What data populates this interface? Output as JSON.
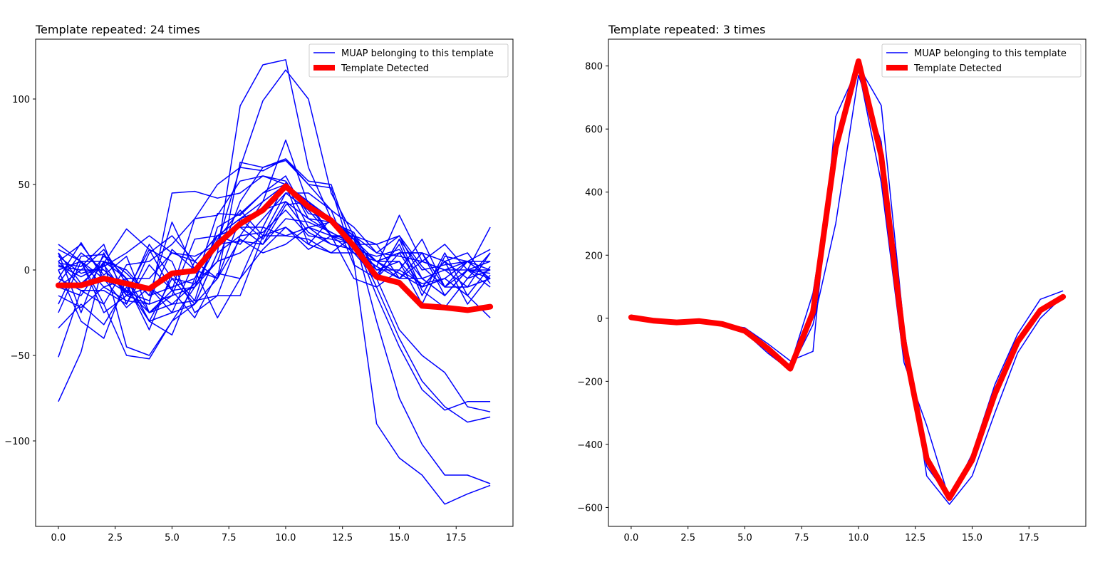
{
  "chart_data": [
    {
      "type": "line",
      "title": "Template repeated: 24 times",
      "xlabel": "",
      "ylabel": "",
      "xlim": [
        -1,
        20
      ],
      "ylim": [
        -150,
        135
      ],
      "grid": false,
      "legend_position": "top-right",
      "x_ticks": [
        0.0,
        2.5,
        5.0,
        7.5,
        10.0,
        12.5,
        15.0,
        17.5
      ],
      "x_tick_labels": [
        "0.0",
        "2.5",
        "5.0",
        "7.5",
        "10.0",
        "12.5",
        "15.0",
        "17.5"
      ],
      "y_ticks": [
        100,
        50,
        0,
        -50,
        -100
      ],
      "y_tick_labels": [
        "100",
        "50",
        "0",
        "−50",
        "−100"
      ],
      "x": [
        0,
        1,
        2,
        3,
        4,
        5,
        6,
        7,
        8,
        9,
        10,
        11,
        12,
        13,
        14,
        15,
        16,
        17,
        18,
        19
      ],
      "muap_color": "#0000ff",
      "template_color": "#ff0000",
      "legend": [
        {
          "label": "MUAP belonging to this template",
          "color": "#0000ff",
          "style": "thin"
        },
        {
          "label": "Template Detected",
          "color": "#ff0000",
          "style": "thick"
        }
      ],
      "muaps": [
        [
          -77,
          -48,
          5,
          -45,
          -50,
          -30,
          -20,
          10,
          96,
          120,
          123,
          60,
          30,
          18,
          -10,
          -40,
          -65,
          -80,
          -89,
          -86
        ],
        [
          -51,
          -12,
          -20,
          -50,
          -52,
          -30,
          -10,
          15,
          60,
          99,
          117,
          100,
          45,
          20,
          -30,
          -75,
          -102,
          -120,
          -120,
          -125
        ],
        [
          0,
          -30,
          -40,
          -5,
          -25,
          -20,
          -8,
          5,
          40,
          60,
          64,
          50,
          48,
          5,
          -90,
          -110,
          -120,
          -137,
          -131,
          -126
        ],
        [
          -34,
          -20,
          -32,
          -10,
          -30,
          -38,
          -5,
          20,
          30,
          40,
          50,
          40,
          20,
          18,
          -15,
          -45,
          -70,
          -82,
          -77,
          -77
        ],
        [
          5,
          -10,
          8,
          -2,
          -15,
          -10,
          -5,
          20,
          15,
          30,
          45,
          35,
          20,
          20,
          -5,
          -35,
          -50,
          -60,
          -80,
          -83
        ],
        [
          15,
          5,
          -5,
          -22,
          -10,
          -20,
          -18,
          -15,
          20,
          40,
          76,
          38,
          20,
          -5,
          -10,
          0,
          -8,
          -5,
          -15,
          -28
        ],
        [
          10,
          -25,
          10,
          -15,
          -20,
          45,
          46,
          42,
          45,
          55,
          52,
          33,
          30,
          18,
          5,
          10,
          -10,
          5,
          -5,
          10
        ],
        [
          3,
          -4,
          3,
          -15,
          15,
          -5,
          -20,
          -5,
          63,
          60,
          65,
          52,
          50,
          12,
          2,
          32,
          5,
          15,
          0,
          -10
        ],
        [
          -10,
          0,
          0,
          -13,
          12,
          5,
          -25,
          -15,
          -15,
          20,
          45,
          45,
          35,
          3,
          -5,
          10,
          10,
          -15,
          0,
          25
        ],
        [
          -5,
          16,
          -5,
          -13,
          -18,
          12,
          0,
          -28,
          -5,
          25,
          51,
          25,
          28,
          18,
          -5,
          18,
          0,
          3,
          5,
          5
        ],
        [
          -20,
          8,
          9,
          -5,
          -30,
          -5,
          -8,
          33,
          32,
          45,
          55,
          30,
          28,
          20,
          0,
          5,
          -20,
          8,
          5,
          -5
        ],
        [
          0,
          5,
          -25,
          -15,
          -10,
          -25,
          5,
          20,
          30,
          35,
          40,
          30,
          22,
          15,
          15,
          20,
          -5,
          -15,
          0,
          -2
        ],
        [
          8,
          -2,
          2,
          10,
          20,
          10,
          8,
          15,
          17,
          15,
          30,
          28,
          22,
          15,
          5,
          10,
          10,
          -10,
          0,
          5
        ],
        [
          -5,
          -12,
          -12,
          -20,
          3,
          -12,
          30,
          50,
          60,
          58,
          65,
          50,
          35,
          25,
          10,
          20,
          2,
          -10,
          -10,
          10
        ],
        [
          12,
          5,
          -10,
          -18,
          -20,
          -15,
          -10,
          18,
          35,
          20,
          25,
          15,
          10,
          20,
          10,
          8,
          5,
          0,
          5,
          -5
        ],
        [
          -8,
          10,
          0,
          -12,
          -25,
          -15,
          18,
          20,
          25,
          15,
          38,
          40,
          28,
          22,
          -3,
          15,
          -15,
          10,
          -15,
          2
        ],
        [
          5,
          15,
          -3,
          8,
          -25,
          -12,
          -10,
          5,
          10,
          20,
          20,
          25,
          15,
          12,
          0,
          0,
          18,
          -10,
          5,
          12
        ],
        [
          -15,
          -22,
          -10,
          -5,
          -30,
          -25,
          -20,
          10,
          20,
          22,
          35,
          20,
          18,
          15,
          5,
          5,
          -10,
          5,
          -20,
          -3
        ],
        [
          2,
          0,
          12,
          -8,
          -35,
          -2,
          -18,
          25,
          33,
          45,
          50,
          40,
          30,
          10,
          -5,
          18,
          -12,
          -22,
          -5,
          0
        ],
        [
          -25,
          5,
          -20,
          3,
          5,
          15,
          30,
          32,
          52,
          55,
          50,
          15,
          30,
          20,
          15,
          -5,
          -5,
          -15,
          0,
          -5
        ],
        [
          10,
          -8,
          4,
          24,
          12,
          -12,
          -28,
          -2,
          -5,
          12,
          25,
          12,
          20,
          15,
          5,
          -2,
          -10,
          -5,
          5,
          0
        ],
        [
          -10,
          -15,
          5,
          -5,
          -5,
          10,
          5,
          -5,
          18,
          10,
          15,
          25,
          20,
          10,
          5,
          -5,
          10,
          5,
          10,
          -8
        ],
        [
          0,
          5,
          5,
          0,
          -15,
          28,
          0,
          -5,
          30,
          18,
          40,
          22,
          15,
          12,
          8,
          12,
          -5,
          0,
          -10,
          -5
        ],
        [
          4,
          2,
          15,
          -20,
          10,
          20,
          5,
          20,
          25,
          25,
          20,
          18,
          10,
          10,
          2,
          -5,
          5,
          0,
          0,
          0
        ]
      ],
      "template": [
        -9,
        -9,
        -5,
        -8,
        -11,
        -2,
        -0.5,
        15,
        27,
        35,
        49,
        37,
        29,
        14,
        -4,
        -7.5,
        -21,
        -22,
        -23.5,
        -21.5
      ]
    },
    {
      "type": "line",
      "title": "Template repeated: 3 times",
      "xlabel": "",
      "ylabel": "",
      "xlim": [
        -1,
        20
      ],
      "ylim": [
        -660,
        885
      ],
      "grid": false,
      "legend_position": "top-right",
      "x_ticks": [
        0.0,
        2.5,
        5.0,
        7.5,
        10.0,
        12.5,
        15.0,
        17.5
      ],
      "x_tick_labels": [
        "0.0",
        "2.5",
        "5.0",
        "7.5",
        "10.0",
        "12.5",
        "15.0",
        "17.5"
      ],
      "y_ticks": [
        800,
        600,
        400,
        200,
        0,
        -200,
        -400,
        -600
      ],
      "y_tick_labels": [
        "800",
        "600",
        "400",
        "200",
        "0",
        "−200",
        "−400",
        "−600"
      ],
      "x": [
        0,
        1,
        2,
        3,
        4,
        5,
        6,
        7,
        8,
        9,
        10,
        11,
        12,
        13,
        14,
        15,
        16,
        17,
        18,
        19
      ],
      "muap_color": "#0000ff",
      "template_color": "#ff0000",
      "legend": [
        {
          "label": "MUAP belonging to this template",
          "color": "#0000ff",
          "style": "thin"
        },
        {
          "label": "Template Detected",
          "color": "#ff0000",
          "style": "thick"
        }
      ],
      "muaps": [
        [
          10,
          -10,
          -15,
          -10,
          -20,
          -30,
          -80,
          -135,
          -105,
          640,
          800,
          675,
          -30,
          -500,
          -590,
          -500,
          -300,
          -110,
          0,
          70
        ],
        [
          0,
          -10,
          -15,
          -10,
          -20,
          -40,
          -100,
          -150,
          80,
          540,
          790,
          430,
          -140,
          -340,
          -575,
          -430,
          -210,
          -50,
          60,
          87
        ],
        [
          5,
          -12,
          -16,
          -8,
          -22,
          -45,
          -110,
          -165,
          -20,
          300,
          770,
          560,
          -100,
          -470,
          -570,
          -440,
          -260,
          -70,
          30,
          70
        ]
      ],
      "template": [
        3,
        -8,
        -13,
        -9,
        -18,
        -40,
        -95,
        -160,
        20,
        540,
        815,
        515,
        -80,
        -445,
        -570,
        -450,
        -240,
        -75,
        25,
        68
      ]
    }
  ]
}
